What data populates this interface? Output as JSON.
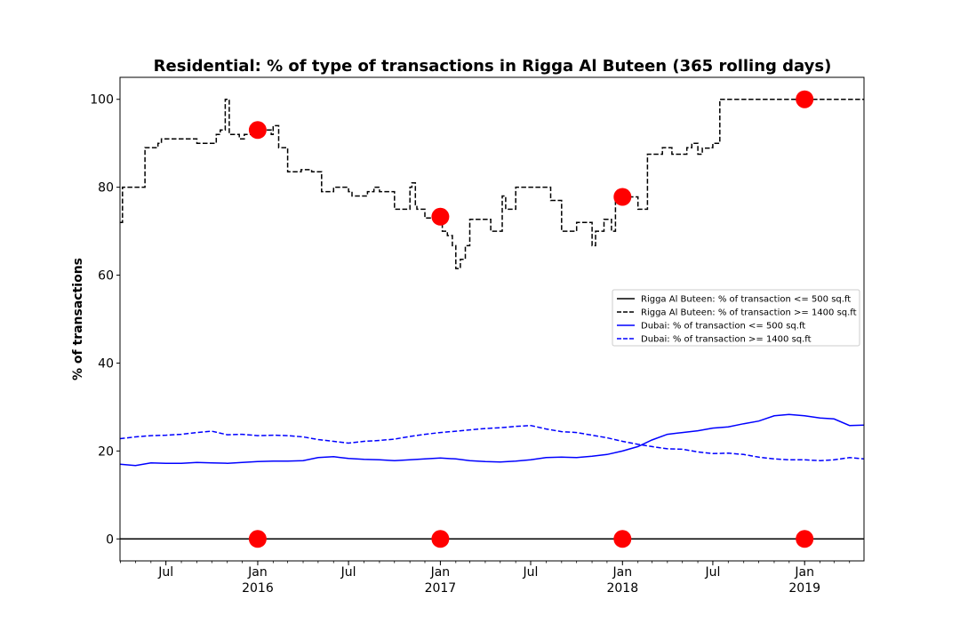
{
  "chart_data": {
    "type": "line",
    "title": "Residential: % of type of transactions in Rigga Al Buteen (365 rolling days)",
    "xlabel": "",
    "ylabel": "% of transactions",
    "ylim": [
      -5,
      105
    ],
    "xlim": [
      "2015-03-31",
      "2019-04-30"
    ],
    "grid": false,
    "legend_position": "center-right",
    "y_ticks": [
      0,
      20,
      40,
      60,
      80,
      100
    ],
    "x_major_ticks": [
      {
        "date": "2015-07-01",
        "label": "Jul",
        "sublabel": ""
      },
      {
        "date": "2016-01-01",
        "label": "Jan",
        "sublabel": "2016"
      },
      {
        "date": "2016-07-01",
        "label": "Jul",
        "sublabel": ""
      },
      {
        "date": "2017-01-01",
        "label": "Jan",
        "sublabel": "2017"
      },
      {
        "date": "2017-07-01",
        "label": "Jul",
        "sublabel": ""
      },
      {
        "date": "2018-01-01",
        "label": "Jan",
        "sublabel": "2018"
      },
      {
        "date": "2018-07-01",
        "label": "Jul",
        "sublabel": ""
      },
      {
        "date": "2019-01-01",
        "label": "Jan",
        "sublabel": "2019"
      }
    ],
    "series": [
      {
        "name": "Rigga Al Buteen: % of transaction <= 500 sq.ft",
        "color": "#000000",
        "style": "solid",
        "step": false,
        "x": [
          "2015-03-31",
          "2019-04-30"
        ],
        "y": [
          0,
          0
        ]
      },
      {
        "name": "Rigga Al Buteen: % of transaction >= 1400 sq.ft",
        "color": "#000000",
        "style": "dashed",
        "step": true,
        "x": [
          "2015-03-31",
          "2015-04-05",
          "2015-04-12",
          "2015-05-20",
          "2015-05-24",
          "2015-06-15",
          "2015-06-22",
          "2015-07-05",
          "2015-09-01",
          "2015-09-28",
          "2015-10-10",
          "2015-10-18",
          "2015-10-28",
          "2015-11-05",
          "2015-11-25",
          "2015-12-05",
          "2015-12-22",
          "2016-01-15",
          "2016-01-28",
          "2016-02-01",
          "2016-02-12",
          "2016-03-01",
          "2016-03-20",
          "2016-03-28",
          "2016-04-18",
          "2016-05-08",
          "2016-06-01",
          "2016-06-15",
          "2016-07-01",
          "2016-07-08",
          "2016-08-01",
          "2016-08-08",
          "2016-08-21",
          "2016-09-01",
          "2016-10-01",
          "2016-10-15",
          "2016-11-01",
          "2016-11-05",
          "2016-11-12",
          "2016-11-15",
          "2016-12-01",
          "2016-12-15",
          "2017-01-05",
          "2017-01-15",
          "2017-01-25",
          "2017-02-01",
          "2017-02-10",
          "2017-02-20",
          "2017-03-01",
          "2017-03-15",
          "2017-04-12",
          "2017-05-05",
          "2017-05-12",
          "2017-06-01",
          "2017-06-22",
          "2017-07-01",
          "2017-08-10",
          "2017-09-01",
          "2017-09-08",
          "2017-09-22",
          "2017-10-01",
          "2017-11-01",
          "2017-11-08",
          "2017-11-18",
          "2017-11-25",
          "2017-12-01",
          "2017-12-10",
          "2017-12-18",
          "2018-01-10",
          "2018-02-01",
          "2018-02-20",
          "2018-03-10",
          "2018-03-22",
          "2018-04-10",
          "2018-04-22",
          "2018-05-10",
          "2018-05-20",
          "2018-06-01",
          "2018-06-10",
          "2018-06-25",
          "2018-07-01",
          "2018-07-15",
          "2018-07-20",
          "2018-12-31",
          "2019-04-30"
        ],
        "y": [
          72,
          80,
          80,
          89,
          89,
          90,
          91,
          91,
          90,
          90,
          92,
          93,
          100,
          92,
          91,
          92,
          93,
          93,
          92,
          94,
          89,
          83.5,
          83.5,
          84,
          83.5,
          79,
          80,
          80,
          79,
          78,
          78,
          79,
          80,
          79,
          75,
          75,
          80,
          81,
          76,
          75,
          73,
          73,
          70,
          69,
          66.7,
          61.5,
          63.6,
          66.7,
          72.7,
          72.7,
          70,
          78,
          75,
          80,
          80,
          80,
          77,
          70,
          70,
          70,
          72,
          66.7,
          70,
          70,
          72.7,
          72.7,
          70,
          77.8,
          77.8,
          75,
          87.5,
          87.5,
          89,
          87.5,
          87.5,
          89,
          90,
          87.5,
          88.9,
          89,
          90,
          100,
          100,
          100,
          100
        ]
      },
      {
        "name": "Dubai: % of transaction <= 500 sq.ft",
        "color": "#0000ff",
        "style": "solid",
        "step": false,
        "x": [
          "2015-03-31",
          "2015-05-01",
          "2015-06-01",
          "2015-07-01",
          "2015-08-01",
          "2015-09-01",
          "2015-10-01",
          "2015-11-01",
          "2015-12-01",
          "2016-01-01",
          "2016-02-01",
          "2016-03-01",
          "2016-04-01",
          "2016-05-01",
          "2016-06-01",
          "2016-07-01",
          "2016-08-01",
          "2016-09-01",
          "2016-10-01",
          "2016-11-01",
          "2016-12-01",
          "2017-01-01",
          "2017-02-01",
          "2017-03-01",
          "2017-04-01",
          "2017-05-01",
          "2017-06-01",
          "2017-07-01",
          "2017-08-01",
          "2017-09-01",
          "2017-10-01",
          "2017-11-01",
          "2017-12-01",
          "2018-01-01",
          "2018-02-01",
          "2018-03-01",
          "2018-04-01",
          "2018-05-01",
          "2018-06-01",
          "2018-07-01",
          "2018-08-01",
          "2018-09-01",
          "2018-10-01",
          "2018-11-01",
          "2018-12-01",
          "2019-01-01",
          "2019-02-01",
          "2019-03-01",
          "2019-04-01",
          "2019-04-30"
        ],
        "y": [
          17,
          16.7,
          17.3,
          17.2,
          17.2,
          17.4,
          17.3,
          17.2,
          17.4,
          17.6,
          17.7,
          17.7,
          17.8,
          18.5,
          18.7,
          18.3,
          18.1,
          18.0,
          17.8,
          18.0,
          18.2,
          18.4,
          18.2,
          17.8,
          17.6,
          17.5,
          17.7,
          18.0,
          18.5,
          18.6,
          18.5,
          18.8,
          19.2,
          20.0,
          21.0,
          22.5,
          23.8,
          24.2,
          24.6,
          25.2,
          25.5,
          26.2,
          26.8,
          28.0,
          28.3,
          28.0,
          27.5,
          27.3,
          25.8,
          25.9
        ]
      },
      {
        "name": "Dubai: % of transaction >= 1400 sq.ft",
        "color": "#0000ff",
        "style": "dashed",
        "step": false,
        "x": [
          "2015-03-31",
          "2015-05-01",
          "2015-06-01",
          "2015-07-01",
          "2015-08-01",
          "2015-09-01",
          "2015-10-01",
          "2015-11-01",
          "2015-12-01",
          "2016-01-01",
          "2016-02-01",
          "2016-03-01",
          "2016-04-01",
          "2016-05-01",
          "2016-06-01",
          "2016-07-01",
          "2016-08-01",
          "2016-09-01",
          "2016-10-01",
          "2016-11-01",
          "2016-12-01",
          "2017-01-01",
          "2017-02-01",
          "2017-03-01",
          "2017-04-01",
          "2017-05-01",
          "2017-06-01",
          "2017-07-01",
          "2017-08-01",
          "2017-09-01",
          "2017-10-01",
          "2017-11-01",
          "2017-12-01",
          "2018-01-01",
          "2018-02-01",
          "2018-03-01",
          "2018-04-01",
          "2018-05-01",
          "2018-06-01",
          "2018-07-01",
          "2018-08-01",
          "2018-09-01",
          "2018-10-01",
          "2018-11-01",
          "2018-12-01",
          "2019-01-01",
          "2019-02-01",
          "2019-03-01",
          "2019-04-01",
          "2019-04-30"
        ],
        "y": [
          22.8,
          23.2,
          23.5,
          23.6,
          23.8,
          24.2,
          24.5,
          23.7,
          23.8,
          23.5,
          23.6,
          23.5,
          23.2,
          22.6,
          22.2,
          21.8,
          22.2,
          22.4,
          22.7,
          23.3,
          23.8,
          24.2,
          24.5,
          24.8,
          25.1,
          25.3,
          25.6,
          25.8,
          25.0,
          24.4,
          24.2,
          23.6,
          23.0,
          22.2,
          21.5,
          21.0,
          20.5,
          20.4,
          19.8,
          19.4,
          19.5,
          19.2,
          18.6,
          18.2,
          18.0,
          18.0,
          17.8,
          18.0,
          18.5,
          18.2
        ]
      }
    ],
    "markers": {
      "color": "#ff0000",
      "points": [
        {
          "x": "2016-01-01",
          "y": 93
        },
        {
          "x": "2017-01-01",
          "y": 73.3
        },
        {
          "x": "2018-01-01",
          "y": 77.8
        },
        {
          "x": "2019-01-01",
          "y": 100
        },
        {
          "x": "2016-01-01",
          "y": 0
        },
        {
          "x": "2017-01-01",
          "y": 0
        },
        {
          "x": "2018-01-01",
          "y": 0
        },
        {
          "x": "2019-01-01",
          "y": 0
        }
      ]
    }
  }
}
